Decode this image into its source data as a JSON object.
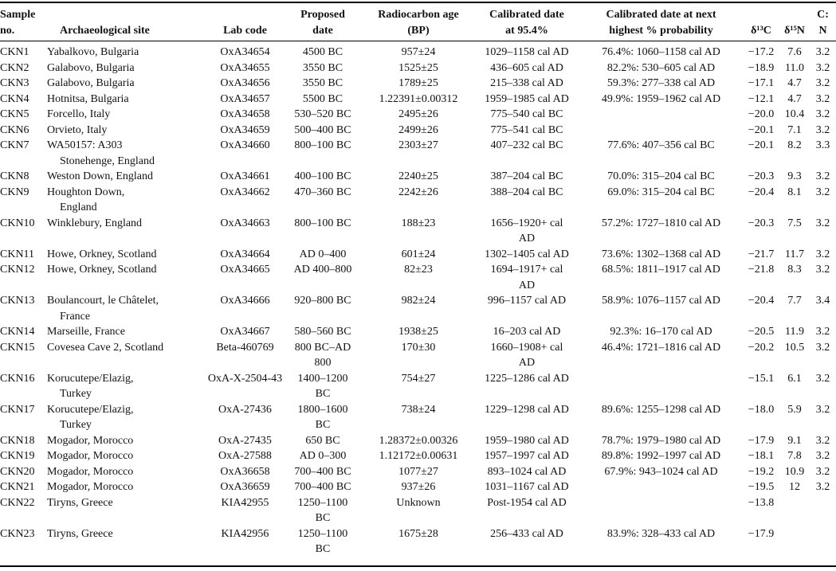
{
  "page": {
    "background": "#ffffff",
    "text_color": "#121212",
    "rule_color": "#000000"
  },
  "table": {
    "headers": [
      "Sample\nno.",
      "Archaeological site",
      "Lab code",
      "Proposed\ndate",
      "Radiocarbon age\n(BP)",
      "Calibrated date\nat 95.4%",
      "Calibrated date at next\nhighest % probability",
      "δ¹³C",
      "δ¹⁵N",
      "C:\nN"
    ],
    "column_keys": [
      "sample-no",
      "archaeological-site",
      "lab-code",
      "proposed-date",
      "radiocarbon-age-bp",
      "calibrated-date-95",
      "calibrated-date-next-highest",
      "delta-13c",
      "delta-15n",
      "cn-ratio"
    ],
    "rows": [
      [
        "CKN1",
        "Yabalkovo, Bulgaria",
        "OxA34654",
        "4500 BC",
        "957±24",
        "1029–1158 cal AD",
        "76.4%: 1060–1158 cal AD",
        "−17.2",
        "7.6",
        "3.2"
      ],
      [
        "CKN2",
        "Galabovo, Bulgaria",
        "OxA34655",
        "3550 BC",
        "1525±25",
        "436–605 cal AD",
        "82.2%: 530–605 cal AD",
        "−18.9",
        "11.0",
        "3.2"
      ],
      [
        "CKN3",
        "Galabovo, Bulgaria",
        "OxA34656",
        "3550 BC",
        "1789±25",
        "215–338 cal AD",
        "59.3%: 277–338 cal AD",
        "−17.1",
        "4.7",
        "3.2"
      ],
      [
        "CKN4",
        "Hotnitsa, Bulgaria",
        "OxA34657",
        "5500 BC",
        "1.22391±0.00312",
        "1959–1985 cal AD",
        "49.9%: 1959–1962 cal AD",
        "−12.1",
        "4.7",
        "3.2"
      ],
      [
        "CKN5",
        "Forcello, Italy",
        "OxA34658",
        "530–520 BC",
        "2495±26",
        "775–540 cal BC",
        "",
        "−20.0",
        "10.4",
        "3.2"
      ],
      [
        "CKN6",
        "Orvieto, Italy",
        "OxA34659",
        "500–400 BC",
        "2499±26",
        "775–541 cal BC",
        "",
        "−20.1",
        "7.1",
        "3.2"
      ],
      [
        "CKN7",
        "WA50157: A303\nStonehenge, England",
        "OxA34660",
        "800–100 BC",
        "2303±27",
        "407–232 cal BC",
        "77.6%: 407–356 cal BC",
        "−20.1",
        "8.2",
        "3.3"
      ],
      [
        "CKN8",
        "Weston Down, England",
        "OxA34661",
        "400–100 BC",
        "2240±25",
        "387–204 cal BC",
        "70.0%: 315–204 cal BC",
        "−20.3",
        "9.3",
        "3.2"
      ],
      [
        "CKN9",
        "Houghton Down,\nEngland",
        "OxA34662",
        "470–360 BC",
        "2242±26",
        "388–204 cal BC",
        "69.0%: 315–204 cal BC",
        "−20.4",
        "8.1",
        "3.2"
      ],
      [
        "CKN10",
        "Winklebury, England",
        "OxA34663",
        "800–100 BC",
        "188±23",
        "1656–1920+ cal\nAD",
        "57.2%: 1727–1810 cal AD",
        "−20.3",
        "7.5",
        "3.2"
      ],
      [
        "CKN11",
        "Howe, Orkney, Scotland",
        "OxA34664",
        "AD 0–400",
        "601±24",
        "1302–1405 cal AD",
        "73.6%: 1302–1368 cal AD",
        "−21.7",
        "11.7",
        "3.2"
      ],
      [
        "CKN12",
        "Howe, Orkney, Scotland",
        "OxA34665",
        "AD 400–800",
        "82±23",
        "1694–1917+ cal\nAD",
        "68.5%: 1811–1917 cal AD",
        "−21.8",
        "8.3",
        "3.2"
      ],
      [
        "CKN13",
        "Boulancourt, le Châtelet,\nFrance",
        "OxA34666",
        "920–800 BC",
        "982±24",
        "996–1157 cal AD",
        "58.9%: 1076–1157 cal AD",
        "−20.4",
        "7.7",
        "3.4"
      ],
      [
        "CKN14",
        "Marseille, France",
        "OxA34667",
        "580–560 BC",
        "1938±25",
        "16–203 cal AD",
        "92.3%: 16–170 cal AD",
        "−20.5",
        "11.9",
        "3.2"
      ],
      [
        "CKN15",
        "Covesea Cave 2, Scotland",
        "Beta-460769",
        "800 BC–AD\n800",
        "170±30",
        "1660–1908+ cal\nAD",
        "46.4%: 1721–1816 cal AD",
        "−20.2",
        "10.5",
        "3.2"
      ],
      [
        "CKN16",
        "Korucutepe/Elazig,\nTurkey",
        "OxA-X-2504-43",
        "1400–1200\nBC",
        "754±27",
        "1225–1286 cal AD",
        "",
        "−15.1",
        "6.1",
        "3.2"
      ],
      [
        "CKN17",
        "Korucutepe/Elazig,\nTurkey",
        "OxA-27436",
        "1800–1600\nBC",
        "738±24",
        "1229–1298 cal AD",
        "89.6%: 1255–1298 cal AD",
        "−18.0",
        "5.9",
        "3.2"
      ],
      [
        "CKN18",
        "Mogador, Morocco",
        "OxA-27435",
        "650 BC",
        "1.28372±0.00326",
        "1959–1980 cal AD",
        "78.7%: 1979–1980 cal AD",
        "−17.9",
        "9.1",
        "3.2"
      ],
      [
        "CKN19",
        "Mogador, Morocco",
        "OxA-27588",
        "AD 0–300",
        "1.12172±0.00631",
        "1957–1997 cal AD",
        "89.8%: 1992–1997 cal AD",
        "−18.1",
        "7.8",
        "3.2"
      ],
      [
        "CKN20",
        "Mogador, Morocco",
        "OxA36658",
        "700–400 BC",
        "1077±27",
        "893–1024 cal AD",
        "67.9%: 943–1024 cal AD",
        "−19.2",
        "10.9",
        "3.2"
      ],
      [
        "CKN21",
        "Mogador, Morocco",
        "OxA36659",
        "700–400 BC",
        "937±26",
        "1031–1167 cal AD",
        "",
        "−19.5",
        "12",
        "3.2"
      ],
      [
        "CKN22",
        "Tiryns, Greece",
        "KIA42955",
        "1250–1100\nBC",
        "Unknown",
        "Post-1954 cal AD",
        "",
        "−13.8",
        "",
        ""
      ],
      [
        "CKN23",
        "Tiryns, Greece",
        "KIA42956",
        "1250–1100\nBC",
        "1675±28",
        "256–433 cal AD",
        "83.9%: 328–433 cal AD",
        "−17.9",
        "",
        ""
      ]
    ]
  }
}
